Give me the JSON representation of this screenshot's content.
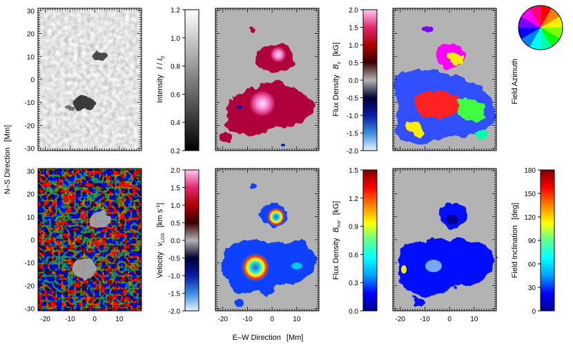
{
  "figure": {
    "common_xlabel_prefix": "E–W Direction",
    "common_xlabel_unit": "[Mm]",
    "common_ylabel_prefix": "N–S Direction",
    "common_ylabel_unit": "[Mm]"
  },
  "chart_data": [
    {
      "type": "heatmap",
      "id": "intensity-map",
      "field": "intensity",
      "xlim": [
        -23,
        19
      ],
      "ylim": [
        -31,
        31
      ],
      "xticks": [
        -20,
        -10,
        0,
        10
      ],
      "yticks": [
        -30,
        -20,
        -10,
        0,
        10,
        20,
        30
      ],
      "features": [
        {
          "kind": "pore",
          "x": 2,
          "y": 10,
          "r": 3
        },
        {
          "kind": "pore",
          "x": -3,
          "y": -10,
          "r": 5
        }
      ]
    },
    {
      "type": "heatmap",
      "id": "bz-map",
      "field": "Bz",
      "xlim": [
        -23,
        19
      ],
      "ylim": [
        -31,
        31
      ],
      "xticks": [
        -20,
        -10,
        0,
        10
      ],
      "features": [
        {
          "kind": "patch",
          "x": 3,
          "y": 10,
          "r": 4
        },
        {
          "kind": "patch",
          "x": -3,
          "y": -10,
          "r": 7
        }
      ]
    },
    {
      "type": "heatmap",
      "id": "azimuth-map",
      "field": "azimuth",
      "xlim": [
        -23,
        19
      ],
      "ylim": [
        -31,
        31
      ],
      "xticks": [
        -20,
        -10,
        0,
        10
      ]
    },
    {
      "type": "heatmap",
      "id": "velocity-map",
      "field": "vlos",
      "xlim": [
        -23,
        19
      ],
      "ylim": [
        -31,
        31
      ],
      "xticks": [
        -20,
        -10,
        0,
        10
      ],
      "yticks": [
        -30,
        -20,
        -10,
        0,
        10,
        20,
        30
      ]
    },
    {
      "type": "heatmap",
      "id": "bhor-map",
      "field": "Bhor",
      "xlim": [
        -23,
        19
      ],
      "ylim": [
        -31,
        31
      ],
      "xticks": [
        -20,
        -10,
        0,
        10
      ]
    },
    {
      "type": "heatmap",
      "id": "inclination-map",
      "field": "inclination",
      "xlim": [
        -23,
        19
      ],
      "ylim": [
        -31,
        31
      ],
      "xticks": [
        -20,
        -10,
        0,
        10
      ]
    }
  ],
  "colorbars": [
    {
      "id": "intensity",
      "label": "Intensity",
      "unit_parts": [
        "I",
        " / ",
        "I",
        "0"
      ],
      "range": [
        0.2,
        1.2
      ],
      "ticks": [
        "0.2",
        "0.4",
        "0.6",
        "0.8",
        "1.0",
        "1.2"
      ],
      "colormap": [
        "#000000",
        "#ffffff"
      ]
    },
    {
      "id": "bz",
      "label": "Flux Density",
      "unit_parts": [
        "B",
        "z",
        "[kG]"
      ],
      "range": [
        -2.0,
        2.0
      ],
      "ticks": [
        "-2.0",
        "-1.5",
        "-1.0",
        "-0.5",
        "0.0",
        "0.5",
        "1.0",
        "1.5",
        "2.0"
      ],
      "colormap": [
        "#e6f3ff",
        "#3a8de0",
        "#0a1aa8",
        "#000033",
        "#b3b3b3",
        "#3b0000",
        "#b00000",
        "#e0286e",
        "#ffc8f5"
      ]
    },
    {
      "id": "vlos",
      "label": "Velocity",
      "unit_parts": [
        "v",
        "LOS",
        "[km s",
        "-1",
        "]"
      ],
      "range": [
        -2.0,
        2.0
      ],
      "ticks": [
        "-2.0",
        "-1.5",
        "-1.0",
        "-0.5",
        "0.0",
        "0.5",
        "1.0",
        "1.5",
        "2.0"
      ],
      "colormap": [
        "#e6f3ff",
        "#3a8de0",
        "#0a1aa8",
        "#000033",
        "#b3b3b3",
        "#3b0000",
        "#b00000",
        "#e0286e",
        "#ffc8f5"
      ]
    },
    {
      "id": "bhor",
      "label": "Flux Density",
      "unit_parts": [
        "B",
        "hor",
        "[kG]"
      ],
      "range": [
        0.0,
        1.5
      ],
      "ticks": [
        "0.0",
        "0.3",
        "0.6",
        "0.9",
        "1.2",
        "1.5"
      ],
      "colormap": [
        "#00008f",
        "#0000ff",
        "#00a0ff",
        "#00ffff",
        "#60ff90",
        "#ffff00",
        "#ff8000",
        "#ff0000",
        "#800000"
      ]
    },
    {
      "id": "inclination",
      "label": "Field Inclination",
      "unit_parts": [
        "[deg]"
      ],
      "range": [
        0,
        180
      ],
      "ticks": [
        "0",
        "30",
        "60",
        "90",
        "120",
        "150",
        "180"
      ],
      "colormap": [
        "#00008f",
        "#0000ff",
        "#00a0ff",
        "#00ffff",
        "#60ff90",
        "#ffff00",
        "#ff8000",
        "#ff0000",
        "#800000"
      ]
    }
  ],
  "azimuth_wheel": {
    "label": "Field Azimuth",
    "colors": [
      "#ff0000",
      "#ff7f00",
      "#ffee00",
      "#80ff00",
      "#00ff00",
      "#00ffaa",
      "#00ffff",
      "#0080ff",
      "#0000ff",
      "#8000ff",
      "#ff00ff",
      "#ff0080"
    ]
  },
  "background_color": "#b3b3b3"
}
